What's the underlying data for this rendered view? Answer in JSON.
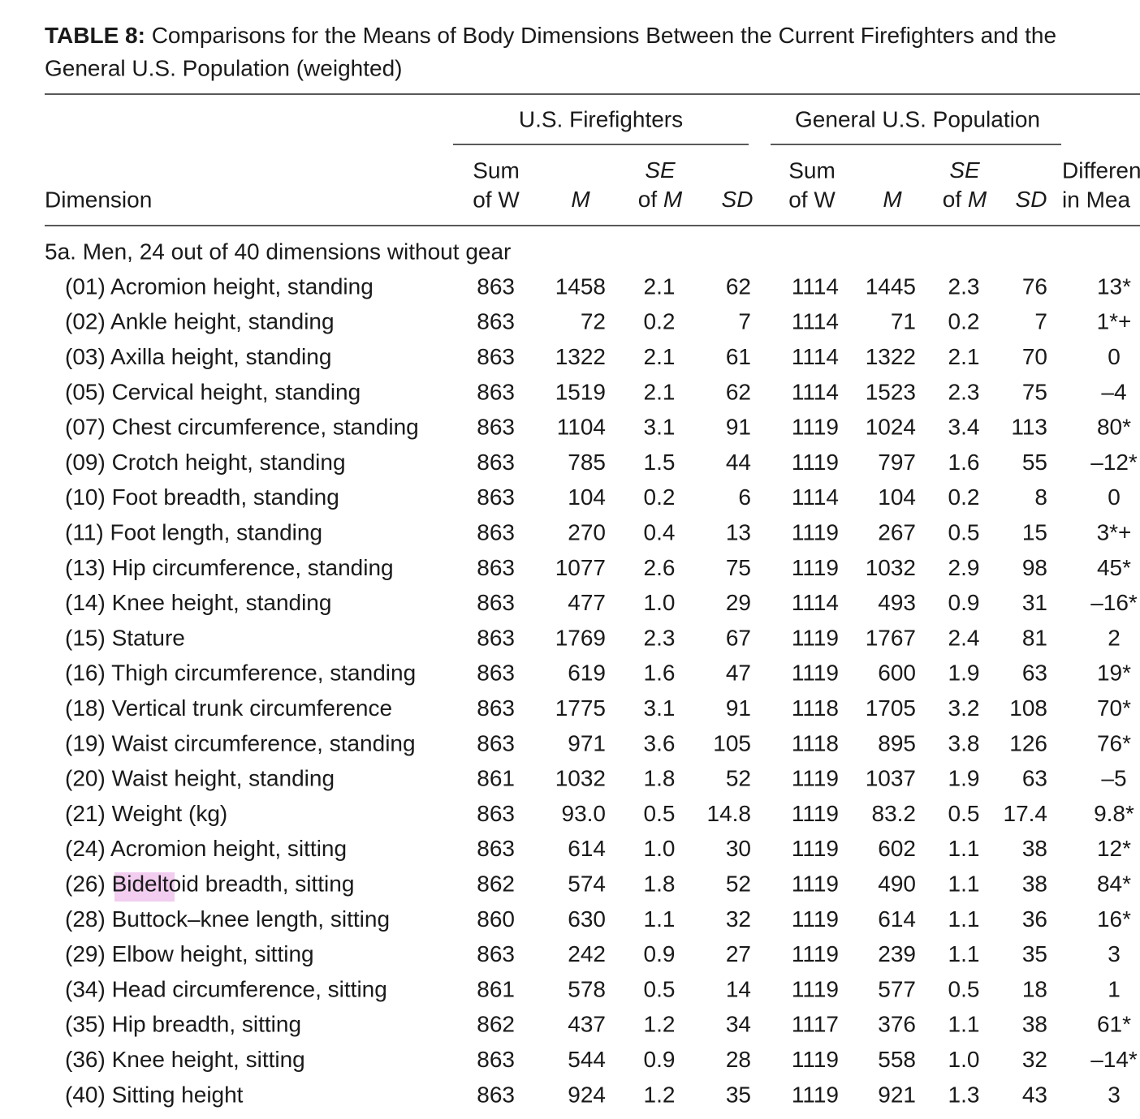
{
  "title": {
    "label": "TABLE 8:",
    "text": "Comparisons for the Means of Body Dimensions Between the Current Firefighters and the",
    "line2": "General U.S. Population (weighted)"
  },
  "table": {
    "groups": [
      "U.S. Firefighters",
      "General U.S. Population"
    ],
    "columns": [
      [
        "Dimension"
      ],
      [
        "Sum",
        "of W"
      ],
      [
        "M"
      ],
      [
        "SE",
        "of M"
      ],
      [
        "SD"
      ],
      [
        "Sum",
        "of W"
      ],
      [
        "M"
      ],
      [
        "SE",
        "of M"
      ],
      [
        "SD"
      ],
      [
        "Differen",
        "in Mea"
      ]
    ],
    "section": "5a. Men, 24 out of 40 dimensions without gear",
    "rows": [
      [
        "(01) Acromion height, standing",
        "863",
        "1458",
        "2.1",
        "62",
        "1114",
        "1445",
        "2.3",
        "76",
        "13*"
      ],
      [
        "(02) Ankle height, standing",
        "863",
        "72",
        "0.2",
        "7",
        "1114",
        "71",
        "0.2",
        "7",
        "1*+"
      ],
      [
        "(03) Axilla height, standing",
        "863",
        "1322",
        "2.1",
        "61",
        "1114",
        "1322",
        "2.1",
        "70",
        "0"
      ],
      [
        "(05) Cervical height, standing",
        "863",
        "1519",
        "2.1",
        "62",
        "1114",
        "1523",
        "2.3",
        "75",
        "–4"
      ],
      [
        "(07) Chest circumference, standing",
        "863",
        "1104",
        "3.1",
        "91",
        "1119",
        "1024",
        "3.4",
        "113",
        "80*"
      ],
      [
        "(09) Crotch height, standing",
        "863",
        "785",
        "1.5",
        "44",
        "1119",
        "797",
        "1.6",
        "55",
        "–12*"
      ],
      [
        "(10) Foot breadth, standing",
        "863",
        "104",
        "0.2",
        "6",
        "1114",
        "104",
        "0.2",
        "8",
        "0"
      ],
      [
        "(11) Foot length, standing",
        "863",
        "270",
        "0.4",
        "13",
        "1119",
        "267",
        "0.5",
        "15",
        "3*+"
      ],
      [
        "(13) Hip circumference, standing",
        "863",
        "1077",
        "2.6",
        "75",
        "1119",
        "1032",
        "2.9",
        "98",
        "45*"
      ],
      [
        "(14) Knee height, standing",
        "863",
        "477",
        "1.0",
        "29",
        "1114",
        "493",
        "0.9",
        "31",
        "–16*"
      ],
      [
        "(15) Stature",
        "863",
        "1769",
        "2.3",
        "67",
        "1119",
        "1767",
        "2.4",
        "81",
        "2"
      ],
      [
        "(16) Thigh circumference, standing",
        "863",
        "619",
        "1.6",
        "47",
        "1119",
        "600",
        "1.9",
        "63",
        "19*"
      ],
      [
        "(18) Vertical trunk circumference",
        "863",
        "1775",
        "3.1",
        "91",
        "1118",
        "1705",
        "3.2",
        "108",
        "70*"
      ],
      [
        "(19) Waist circumference, standing",
        "863",
        "971",
        "3.6",
        "105",
        "1118",
        "895",
        "3.8",
        "126",
        "76*"
      ],
      [
        "(20) Waist height, standing",
        "861",
        "1032",
        "1.8",
        "52",
        "1119",
        "1037",
        "1.9",
        "63",
        "–5"
      ],
      [
        "(21) Weight (kg)",
        "863",
        "93.0",
        "0.5",
        "14.8",
        "1119",
        "83.2",
        "0.5",
        "17.4",
        "9.8*"
      ],
      [
        "(24) Acromion height, sitting",
        "863",
        "614",
        "1.0",
        "30",
        "1119",
        "602",
        "1.1",
        "38",
        "12*"
      ],
      [
        "(26) Bideltoid breadth, sitting",
        "862",
        "574",
        "1.8",
        "52",
        "1119",
        "490",
        "1.1",
        "38",
        "84*"
      ],
      [
        "(28) Buttock–knee length, sitting",
        "860",
        "630",
        "1.1",
        "32",
        "1119",
        "614",
        "1.1",
        "36",
        "16*"
      ],
      [
        "(29) Elbow height, sitting",
        "863",
        "242",
        "0.9",
        "27",
        "1119",
        "239",
        "1.1",
        "35",
        "3"
      ],
      [
        "(34) Head circumference, sitting",
        "861",
        "578",
        "0.5",
        "14",
        "1119",
        "577",
        "0.5",
        "18",
        "1"
      ],
      [
        "(35) Hip breadth, sitting",
        "862",
        "437",
        "1.2",
        "34",
        "1117",
        "376",
        "1.1",
        "38",
        "61*"
      ],
      [
        "(36) Knee height, sitting",
        "863",
        "544",
        "0.9",
        "28",
        "1119",
        "558",
        "1.0",
        "32",
        "–14*"
      ],
      [
        "(40) Sitting height",
        "863",
        "924",
        "1.2",
        "35",
        "1119",
        "921",
        "1.3",
        "43",
        "3"
      ]
    ]
  }
}
